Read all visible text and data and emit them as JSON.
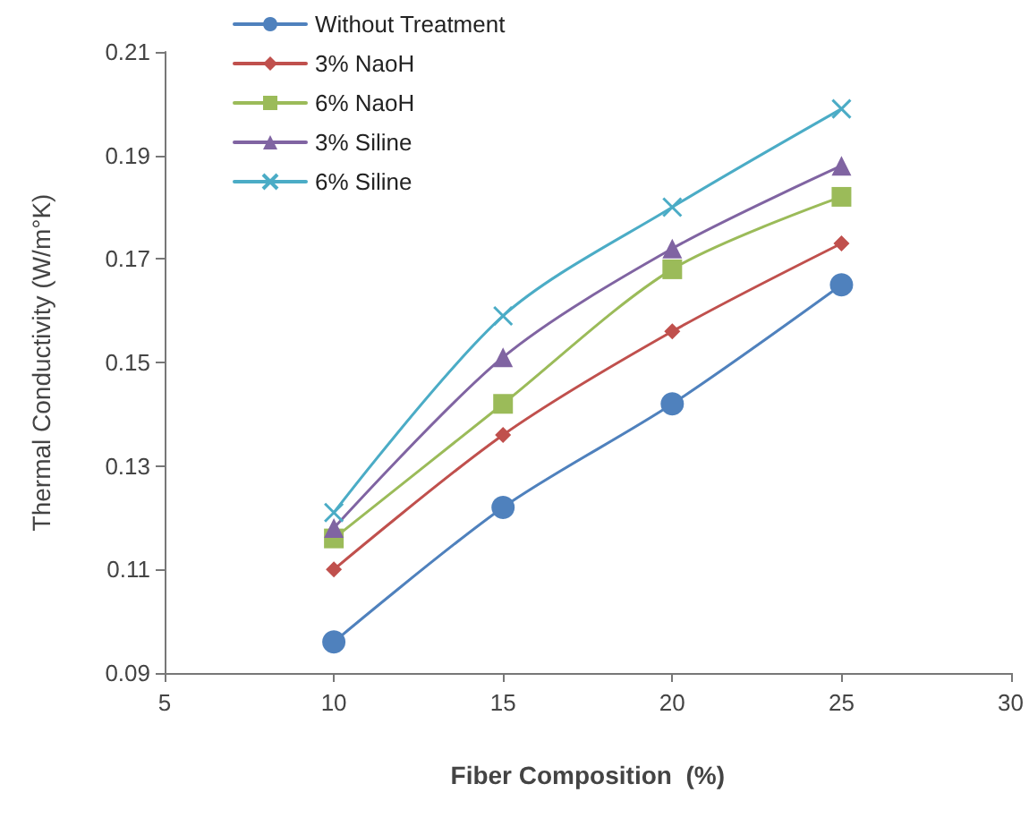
{
  "chart_data": {
    "type": "line",
    "xlabel": "Fiber Composition  (%)",
    "ylabel": "Thermal Conductivity (W/m°K)",
    "x": [
      10,
      15,
      20,
      25
    ],
    "series": [
      {
        "name": "Without Treatment",
        "color": "#4f81bd",
        "marker": "circle",
        "values": [
          0.096,
          0.122,
          0.142,
          0.165
        ]
      },
      {
        "name": "3% NaoH",
        "color": "#c0504d",
        "marker": "diamond",
        "values": [
          0.11,
          0.136,
          0.156,
          0.173
        ]
      },
      {
        "name": "6% NaoH",
        "color": "#9bbb59",
        "marker": "square",
        "values": [
          0.116,
          0.142,
          0.168,
          0.182
        ]
      },
      {
        "name": "3% Siline",
        "color": "#8064a2",
        "marker": "triangle",
        "values": [
          0.118,
          0.151,
          0.172,
          0.188
        ]
      },
      {
        "name": "6% Siline",
        "color": "#4bacc6",
        "marker": "cross",
        "values": [
          0.121,
          0.159,
          0.18,
          0.199
        ]
      }
    ],
    "xlim": [
      5,
      30
    ],
    "xticks": [
      5,
      10,
      15,
      20,
      25,
      30
    ],
    "ylim": [
      0.09,
      0.21
    ],
    "yticks": [
      0.09,
      0.11,
      0.13,
      0.15,
      0.17,
      0.19,
      0.21
    ],
    "grid": false,
    "legend": "top left"
  }
}
